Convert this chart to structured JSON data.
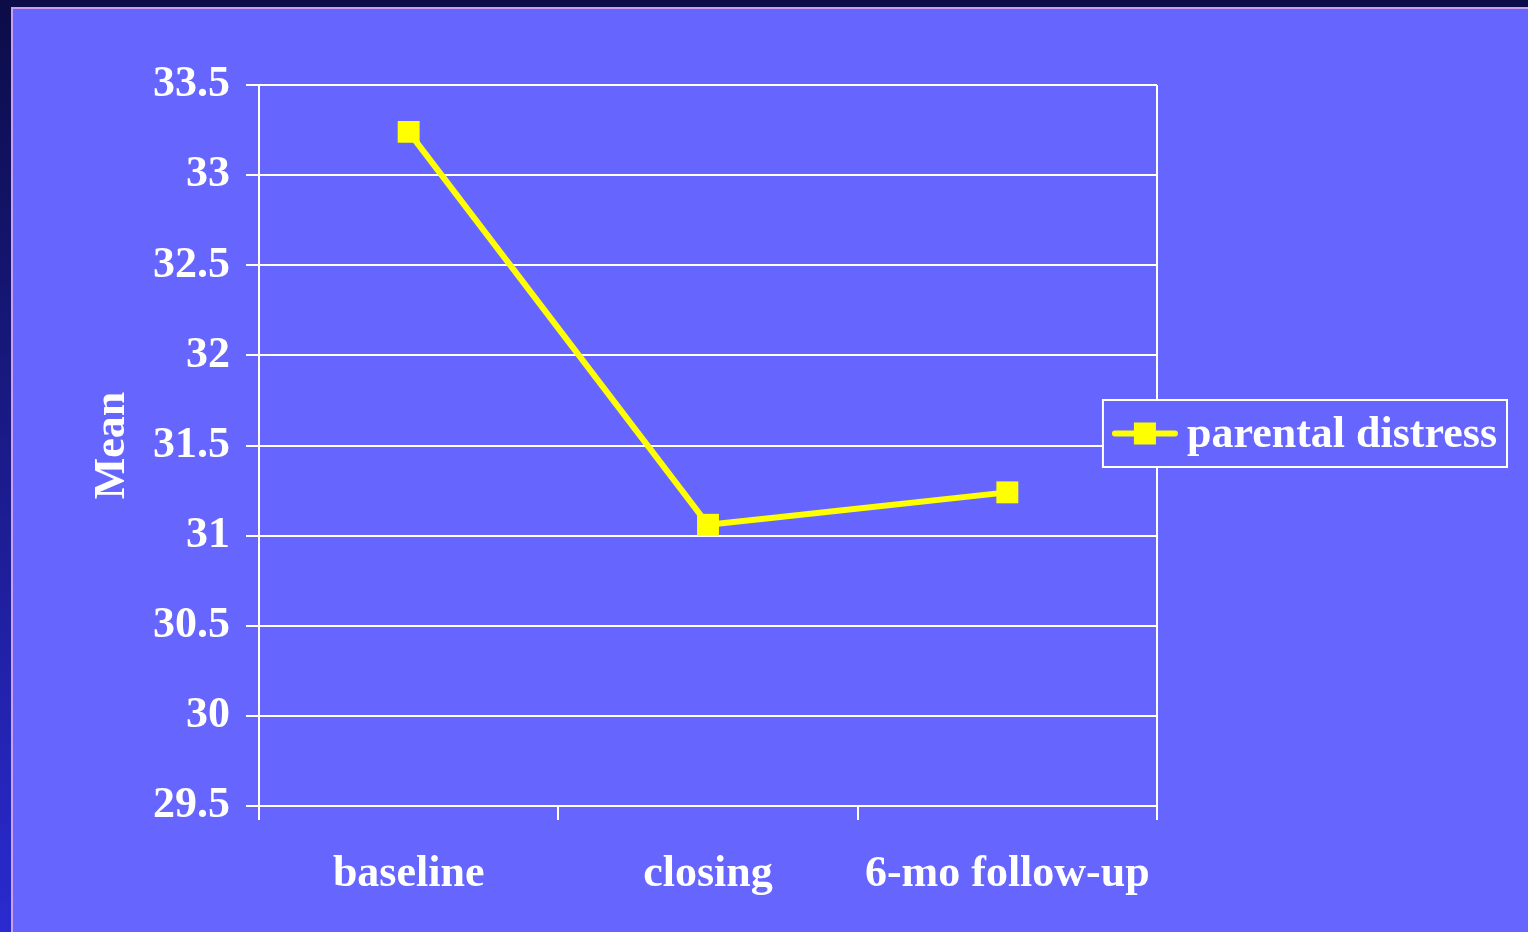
{
  "chart_data": {
    "type": "line",
    "ylabel": "Mean",
    "categories": [
      "baseline",
      "closing",
      "6-mo follow-up"
    ],
    "series": [
      {
        "name": "parental distress",
        "color": "#ffff00",
        "values": [
          33.24,
          31.06,
          31.24
        ]
      }
    ],
    "ylim": [
      29.5,
      33.5
    ],
    "yticks": [
      29.5,
      30,
      30.5,
      31,
      31.5,
      32,
      32.5,
      33,
      33.5
    ],
    "grid": "y",
    "legend": "right",
    "marker": "square"
  }
}
